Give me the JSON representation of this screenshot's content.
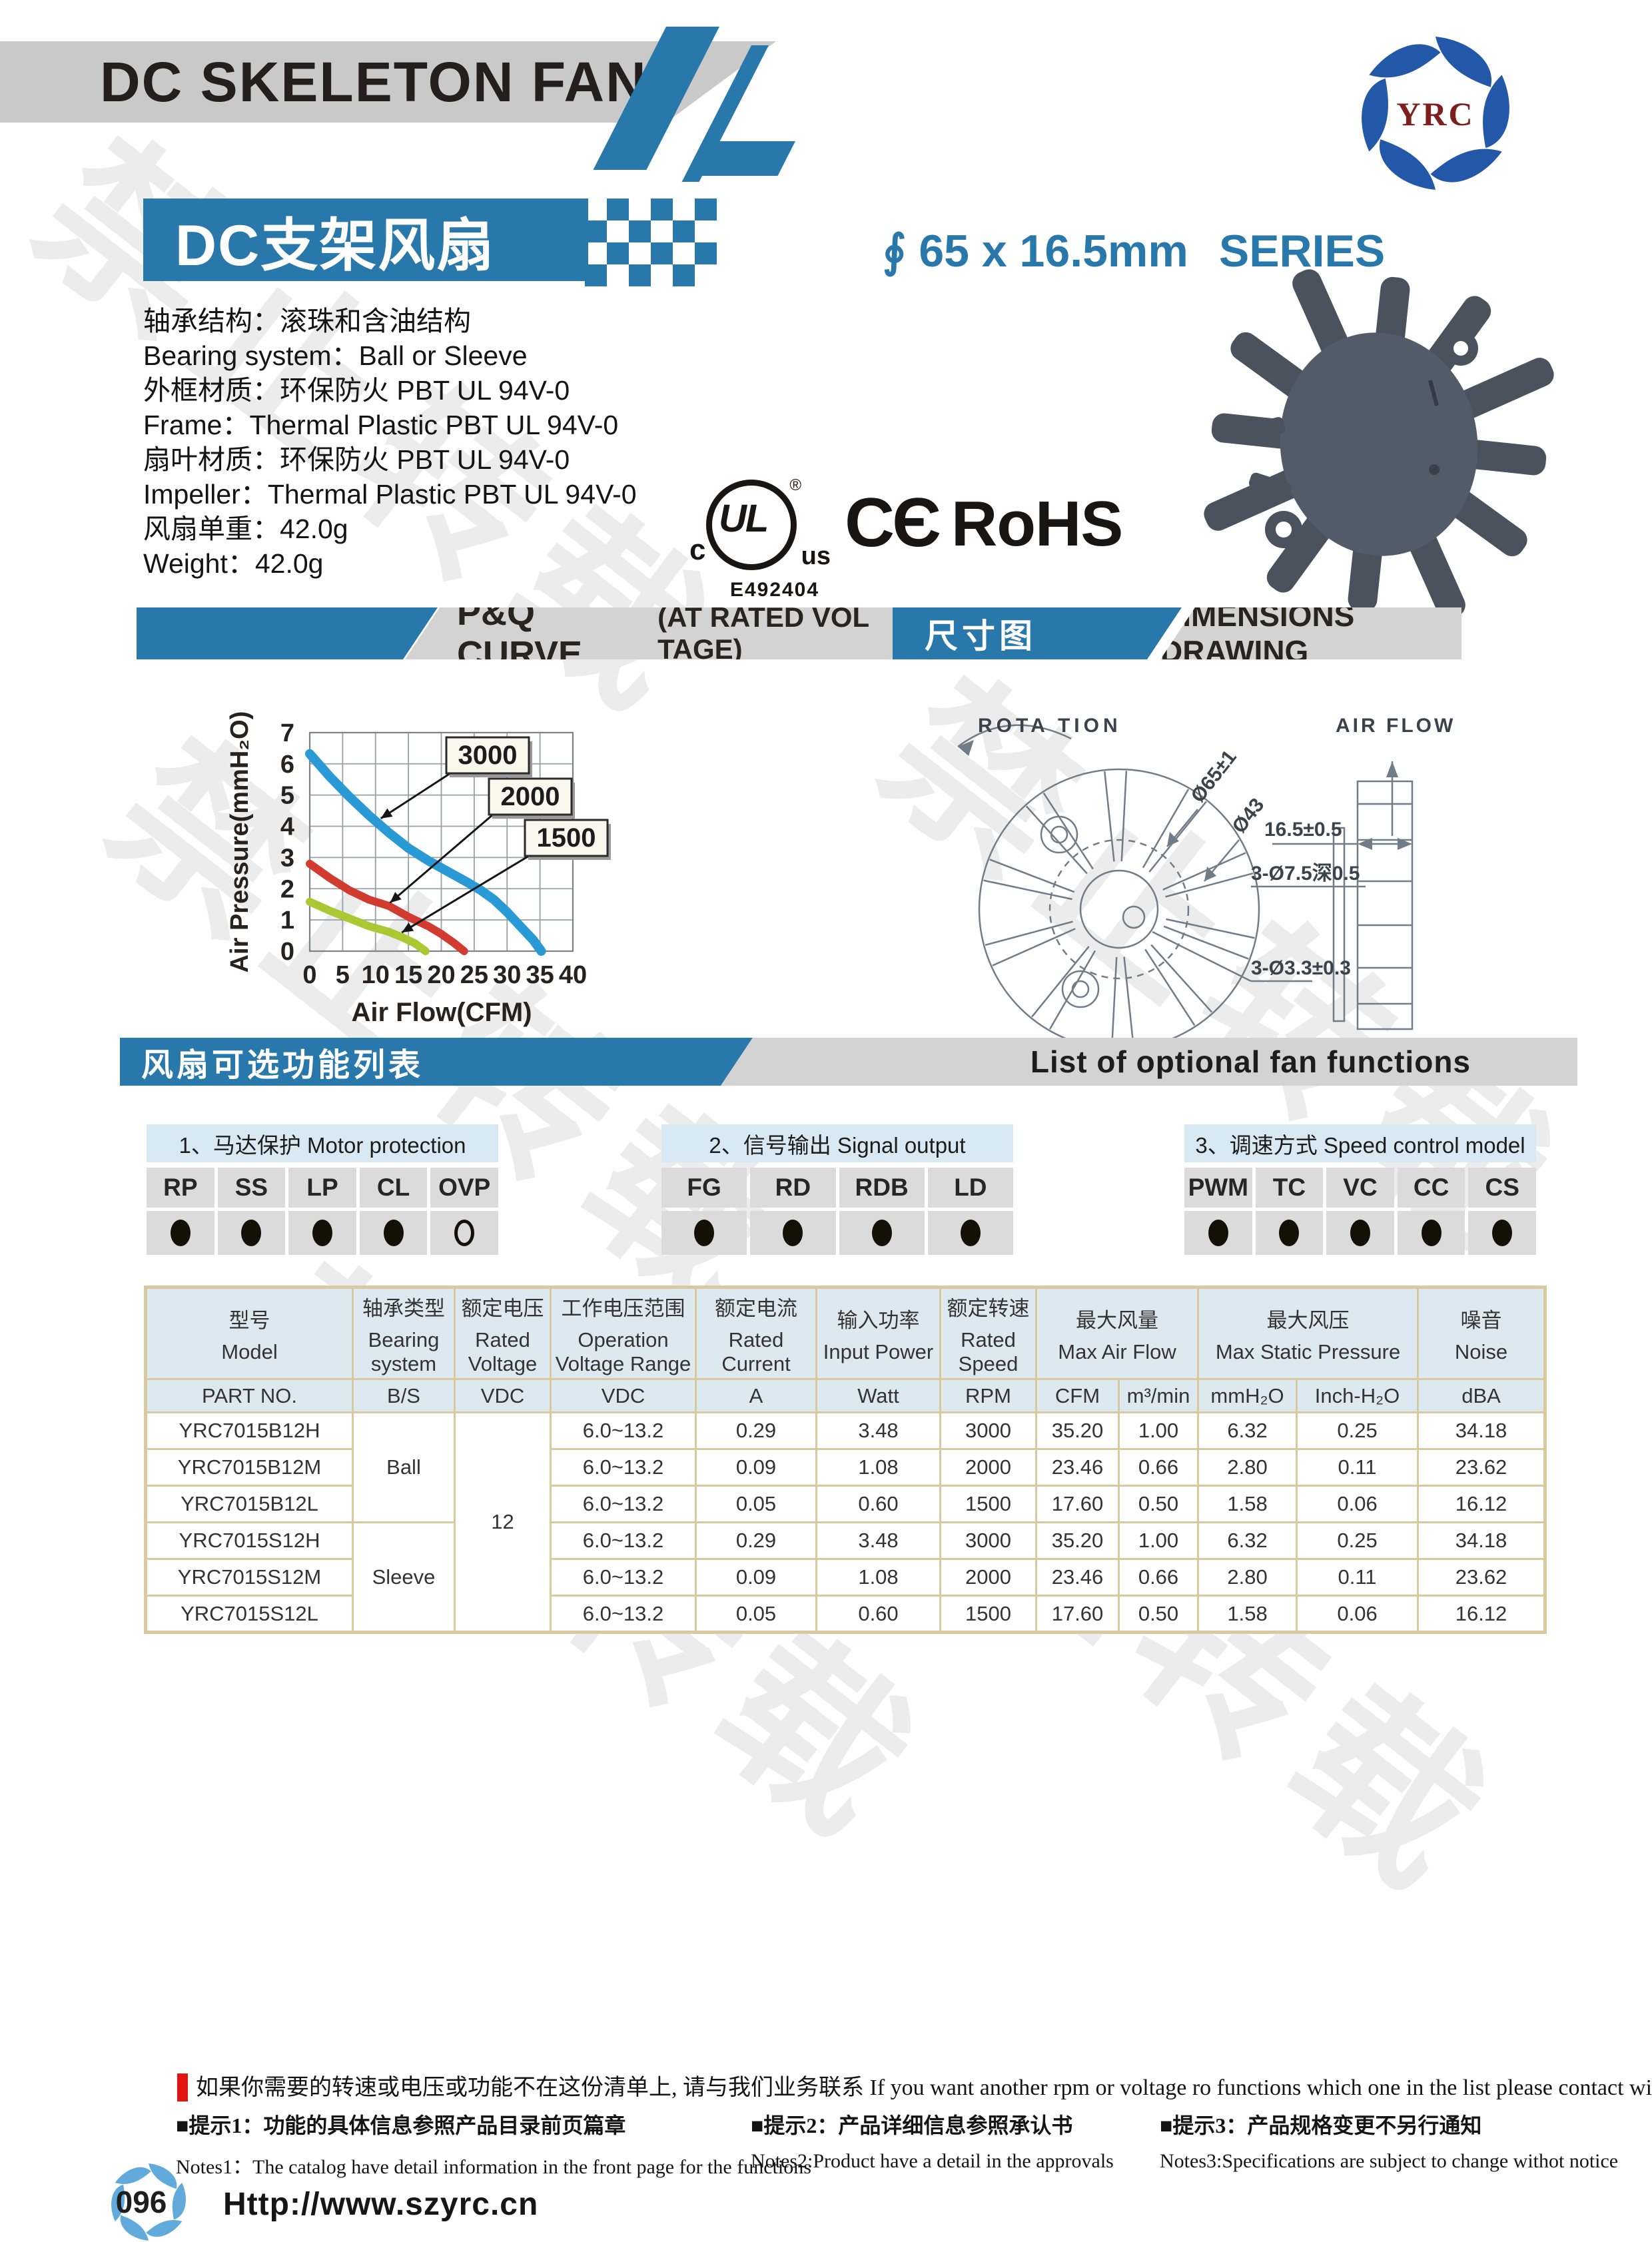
{
  "watermark": "禁止转载",
  "colors": {
    "accent_blue": "#2878ab",
    "banner_gray": "#d3d3d3",
    "table_border": "#d9c99e",
    "table_header_fill": "#dde9f0",
    "option_header_fill": "#d9e9f3",
    "option_cell_fill": "#dbdbdb",
    "note_red": "#e31313",
    "logo_blue": "#2357a8",
    "logo_text_red": "#7d1f1f",
    "footer_logo_blue": "#62aadc"
  },
  "header": {
    "title": "DC SKELETON FAN",
    "logo_text": "YRC"
  },
  "product": {
    "title_cn": "DC支架风扇",
    "series": "∮ 65 x 16.5mm",
    "series_suffix": "SERIES",
    "specs": [
      "轴承结构：滚珠和含油结构",
      "Bearing system：Ball or Sleeve",
      "外框材质：环保防火 PBT UL 94V-0",
      "Frame：Thermal Plastic PBT UL 94V-0",
      "扇叶材质：环保防火 PBT UL 94V-0",
      "Impeller：Thermal Plastic PBT UL 94V-0",
      "风扇单重：42.0g",
      "Weight：42.0g"
    ],
    "certs": {
      "ul_c": "c",
      "ul": "UL",
      "ul_us": "us",
      "ul_reg": "®",
      "ul_file": "E492404",
      "ce": "CЄ",
      "rohs": "RoHS"
    }
  },
  "pq_banner": {
    "title": "P&Q CURVE",
    "subtitle": "(AT RATED VOL TAGE)"
  },
  "dim_banner": {
    "title_cn": "尺寸图",
    "title_en": "DIMENSIONS DRAWING"
  },
  "chart_data": {
    "type": "line",
    "title": "P&Q CURVE (AT RATED VOLTAGE)",
    "xlabel": "Air Flow(CFM)",
    "ylabel": "Air Pressure(mmH₂O)",
    "xlim": [
      0,
      40
    ],
    "ylim": [
      0,
      7
    ],
    "x_ticks": [
      0,
      5,
      10,
      15,
      20,
      25,
      30,
      35,
      40
    ],
    "y_ticks": [
      0,
      1,
      2,
      3,
      4,
      5,
      6,
      7
    ],
    "grid": true,
    "legend_position": "inline-labels",
    "series": [
      {
        "name": "3000",
        "color": "#2a9ad6",
        "points": [
          [
            0,
            6.32
          ],
          [
            3,
            5.6
          ],
          [
            6,
            4.95
          ],
          [
            9,
            4.35
          ],
          [
            12,
            3.8
          ],
          [
            15,
            3.3
          ],
          [
            18,
            2.9
          ],
          [
            21,
            2.55
          ],
          [
            24,
            2.2
          ],
          [
            26,
            1.95
          ],
          [
            28,
            1.65
          ],
          [
            30,
            1.25
          ],
          [
            32,
            0.8
          ],
          [
            34,
            0.35
          ],
          [
            35.2,
            0
          ]
        ]
      },
      {
        "name": "2000",
        "color": "#d23c30",
        "points": [
          [
            0,
            2.8
          ],
          [
            3,
            2.35
          ],
          [
            6,
            1.95
          ],
          [
            9,
            1.65
          ],
          [
            12,
            1.45
          ],
          [
            15,
            1.1
          ],
          [
            18,
            0.8
          ],
          [
            20,
            0.55
          ],
          [
            22,
            0.25
          ],
          [
            23.46,
            0
          ]
        ]
      },
      {
        "name": "1500",
        "color": "#aac832",
        "points": [
          [
            0,
            1.58
          ],
          [
            3,
            1.3
          ],
          [
            6,
            1.05
          ],
          [
            9,
            0.8
          ],
          [
            12,
            0.62
          ],
          [
            14,
            0.45
          ],
          [
            16,
            0.25
          ],
          [
            17.6,
            0
          ]
        ]
      }
    ]
  },
  "dims_drawing": {
    "rotation_label": "ROTA TION",
    "airflow_label": "AIR FLOW",
    "dia_outer": "Ø65±1",
    "dia_inner": "Ø43",
    "thickness": "16.5±0.5",
    "holes_large": "3-Ø7.5深0.5",
    "holes_small": "3-Ø3.3±0.3"
  },
  "functions": {
    "banner_cn": "风扇可选功能列表",
    "banner_en": "List of optional fan functions",
    "groups": [
      {
        "title": "1、马达保护 Motor protection",
        "codes": [
          "RP",
          "SS",
          "LP",
          "CL",
          "OVP"
        ],
        "marks": [
          "filled",
          "filled",
          "filled",
          "filled",
          "hollow"
        ]
      },
      {
        "title": "2、信号输出 Signal output",
        "codes": [
          "FG",
          "RD",
          "RDB",
          "LD"
        ],
        "marks": [
          "filled",
          "filled",
          "filled",
          "filled"
        ]
      },
      {
        "title": "3、调速方式 Speed control model",
        "codes": [
          "PWM",
          "TC",
          "VC",
          "CC",
          "CS"
        ],
        "marks": [
          "filled",
          "filled",
          "filled",
          "filled",
          "filled"
        ]
      }
    ]
  },
  "table": {
    "headers": [
      {
        "cn": "型号",
        "en": "Model"
      },
      {
        "cn": "轴承类型",
        "en": "Bearing system"
      },
      {
        "cn": "额定电压",
        "en": "Rated Voltage"
      },
      {
        "cn": "工作电压范围",
        "en": "Operation Voltage Range"
      },
      {
        "cn": "额定电流",
        "en": "Rated Current"
      },
      {
        "cn": "输入功率",
        "en": "Input Power"
      },
      {
        "cn": "额定转速",
        "en": "Rated Speed"
      },
      {
        "cn": "最大风量",
        "en": "Max Air Flow"
      },
      {
        "cn": "最大风压",
        "en": "Max Static Pressure"
      },
      {
        "cn": "噪音",
        "en": "Noise"
      }
    ],
    "units": [
      "PART NO.",
      "B/S",
      "VDC",
      "VDC",
      "A",
      "Watt",
      "RPM",
      "CFM",
      "m³/min",
      "mmH₂O",
      "Inch-H₂O",
      "dBA"
    ],
    "rated_voltage": "12",
    "bearing_groups": [
      {
        "label": "Ball",
        "rows": 3
      },
      {
        "label": "Sleeve",
        "rows": 3
      }
    ],
    "rows": [
      [
        "YRC7015B12H",
        "6.0~13.2",
        "0.29",
        "3.48",
        "3000",
        "35.20",
        "1.00",
        "6.32",
        "0.25",
        "34.18"
      ],
      [
        "YRC7015B12M",
        "6.0~13.2",
        "0.09",
        "1.08",
        "2000",
        "23.46",
        "0.66",
        "2.80",
        "0.11",
        "23.62"
      ],
      [
        "YRC7015B12L",
        "6.0~13.2",
        "0.05",
        "0.60",
        "1500",
        "17.60",
        "0.50",
        "1.58",
        "0.06",
        "16.12"
      ],
      [
        "YRC7015S12H",
        "6.0~13.2",
        "0.29",
        "3.48",
        "3000",
        "35.20",
        "1.00",
        "6.32",
        "0.25",
        "34.18"
      ],
      [
        "YRC7015S12M",
        "6.0~13.2",
        "0.09",
        "1.08",
        "2000",
        "23.46",
        "0.66",
        "2.80",
        "0.11",
        "23.62"
      ],
      [
        "YRC7015S12L",
        "6.0~13.2",
        "0.05",
        "0.60",
        "1500",
        "17.60",
        "0.50",
        "1.58",
        "0.06",
        "16.12"
      ]
    ]
  },
  "notes": {
    "main": "如果你需要的转速或电压或功能不在这份清单上, 请与我们业务联系 If you want another rpm or voltage ro functions which one in the list please contact with our sales.",
    "items": [
      {
        "cn": "■提示1：功能的具体信息参照产品目录前页篇章",
        "en": "Notes1：The catalog have detail information in the front page for the functions"
      },
      {
        "cn": "■提示2：产品详细信息参照承认书",
        "en": "Notes2:Product have a detail in the approvals"
      },
      {
        "cn": "■提示3：产品规格变更不另行通知",
        "en": "Notes3:Specifications are subject to change withot notice"
      }
    ]
  },
  "footer": {
    "page": "096",
    "url": "Http://www.szyrc.cn"
  }
}
